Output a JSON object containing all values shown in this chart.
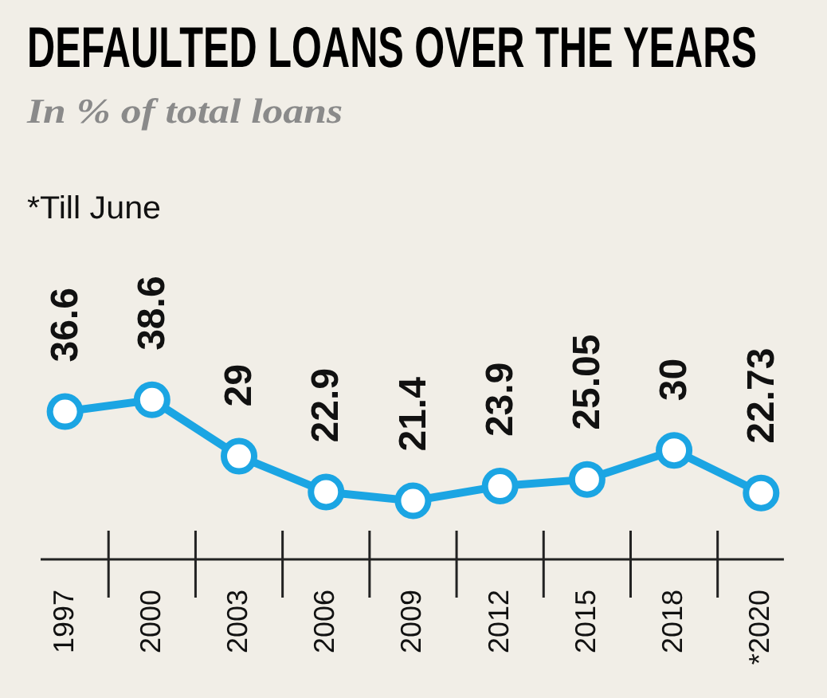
{
  "chart_data": {
    "type": "line",
    "title": "DEFAULTED LOANS OVER THE YEARS",
    "subtitle": "In % of total loans",
    "annotations": [
      "*Till June"
    ],
    "categories": [
      "1997",
      "2000",
      "2003",
      "2006",
      "2009",
      "2012",
      "2015",
      "2018",
      "*2020"
    ],
    "values": [
      36.6,
      38.6,
      29,
      22.9,
      21.4,
      23.9,
      25.05,
      30,
      22.73
    ],
    "color": "#1ba5e3",
    "data_labels": true,
    "legend": false,
    "grid": false,
    "marker": "circle",
    "line_style": "solid"
  }
}
